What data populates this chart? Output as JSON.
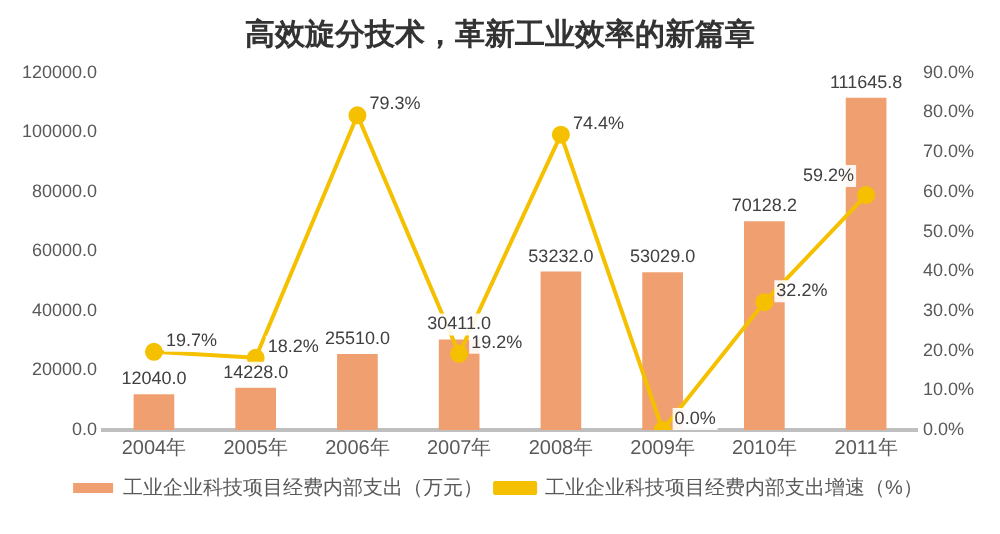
{
  "chart_data": {
    "type": "bar",
    "title": "高效旋分技术，革新工业效率的新篇章",
    "categories": [
      "2004年",
      "2005年",
      "2006年",
      "2007年",
      "2008年",
      "2009年",
      "2010年",
      "2011年"
    ],
    "series": [
      {
        "name": "工业企业科技项目经费内部支出（万元）",
        "color": "#f0a070",
        "values": [
          12040.0,
          14228.0,
          25510.0,
          30411.0,
          53232.0,
          53029.0,
          70128.2,
          111645.8
        ],
        "value_labels": [
          "12040.0",
          "14228.0",
          "25510.0",
          "30411.0",
          "53232.0",
          "53029.0",
          "70128.2",
          "111645.8"
        ]
      },
      {
        "name": "工业企业科技项目经费内部支出增速（%）",
        "type": "line",
        "axis": "y2",
        "color": "#f5c000",
        "values": [
          19.7,
          18.2,
          79.3,
          19.2,
          74.4,
          0.0,
          32.2,
          59.2
        ],
        "value_labels": [
          "19.7%",
          "18.2%",
          "79.3%",
          "19.2%",
          "74.4%",
          "0.0%",
          "32.2%",
          "59.2%"
        ]
      }
    ],
    "ylim": [
      0,
      120000
    ],
    "yticks": [
      {
        "value": 0,
        "label": "0.0"
      },
      {
        "value": 20000,
        "label": "20000.0"
      },
      {
        "value": 40000,
        "label": "40000.0"
      },
      {
        "value": 60000,
        "label": "60000.0"
      },
      {
        "value": 80000,
        "label": "80000.0"
      },
      {
        "value": 100000,
        "label": "100000.0"
      },
      {
        "value": 120000,
        "label": "120000.0"
      }
    ],
    "y2lim": [
      0,
      90
    ],
    "y2ticks": [
      {
        "value": 0,
        "label": "0.0%"
      },
      {
        "value": 10,
        "label": "10.0%"
      },
      {
        "value": 20,
        "label": "20.0%"
      },
      {
        "value": 30,
        "label": "30.0%"
      },
      {
        "value": 40,
        "label": "40.0%"
      },
      {
        "value": 50,
        "label": "50.0%"
      },
      {
        "value": 60,
        "label": "60.0%"
      },
      {
        "value": 70,
        "label": "70.0%"
      },
      {
        "value": 80,
        "label": "80.0%"
      },
      {
        "value": 90,
        "label": "90.0%"
      }
    ],
    "grid": false,
    "legend": "bottom",
    "marker": "circle"
  }
}
